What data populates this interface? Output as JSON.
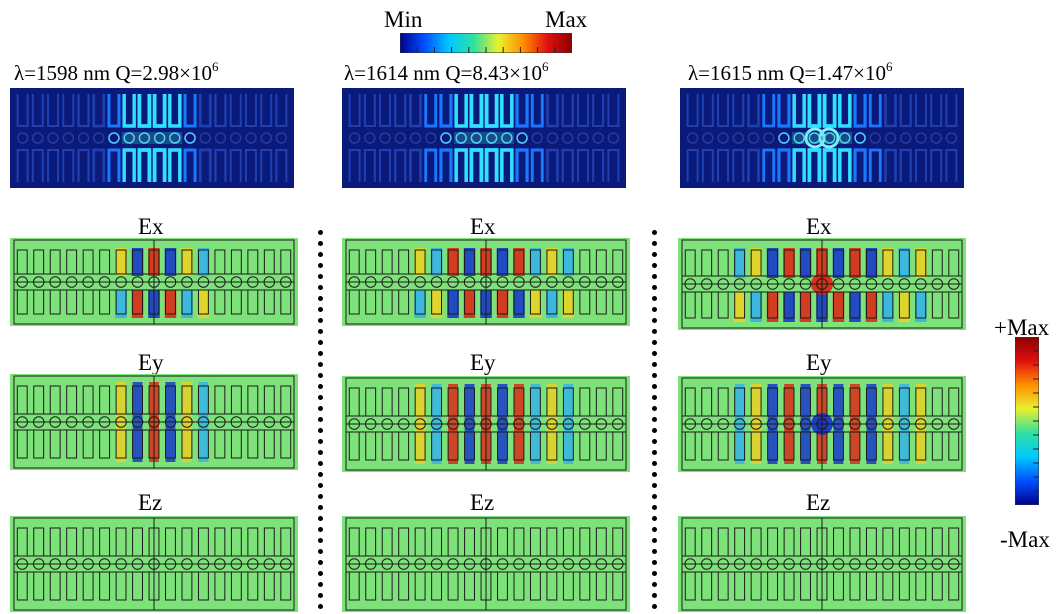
{
  "colorbar_top": {
    "min_label": "Min",
    "max_label": "Max",
    "colors": [
      "#00008f",
      "#0050ff",
      "#00c8ff",
      "#30e0a0",
      "#e8f030",
      "#ff9000",
      "#e01010",
      "#8b0000"
    ]
  },
  "colorbar_side": {
    "max_label": "+Max",
    "min_label": "-Max",
    "colors": [
      "#8b0000",
      "#e01010",
      "#ff9000",
      "#e8f030",
      "#30e0a0",
      "#00c8ff",
      "#0050ff",
      "#00008f"
    ]
  },
  "columns": [
    {
      "title_prefix": "λ=1598 nm Q=2.98×10",
      "title_exp": "6",
      "field_label_x": "Ex",
      "field_label_y": "Ey",
      "field_label_z": "Ez"
    },
    {
      "title_prefix": "λ=1614 nm Q=8.43×10",
      "title_exp": "6",
      "field_label_x": "Ex",
      "field_label_y": "Ey",
      "field_label_z": "Ez"
    },
    {
      "title_prefix": "λ=1615 nm Q=1.47×10",
      "title_exp": "6",
      "field_label_x": "Ex",
      "field_label_y": "Ey",
      "field_label_z": "Ez"
    }
  ],
  "colors": {
    "map_background": "#0a1a7a",
    "field_background": "#7ee27a",
    "outline": "#1a1a1a",
    "hot": "#e02010",
    "cold": "#1030d0",
    "warm": "#f0d020",
    "cool": "#30b0f0"
  }
}
